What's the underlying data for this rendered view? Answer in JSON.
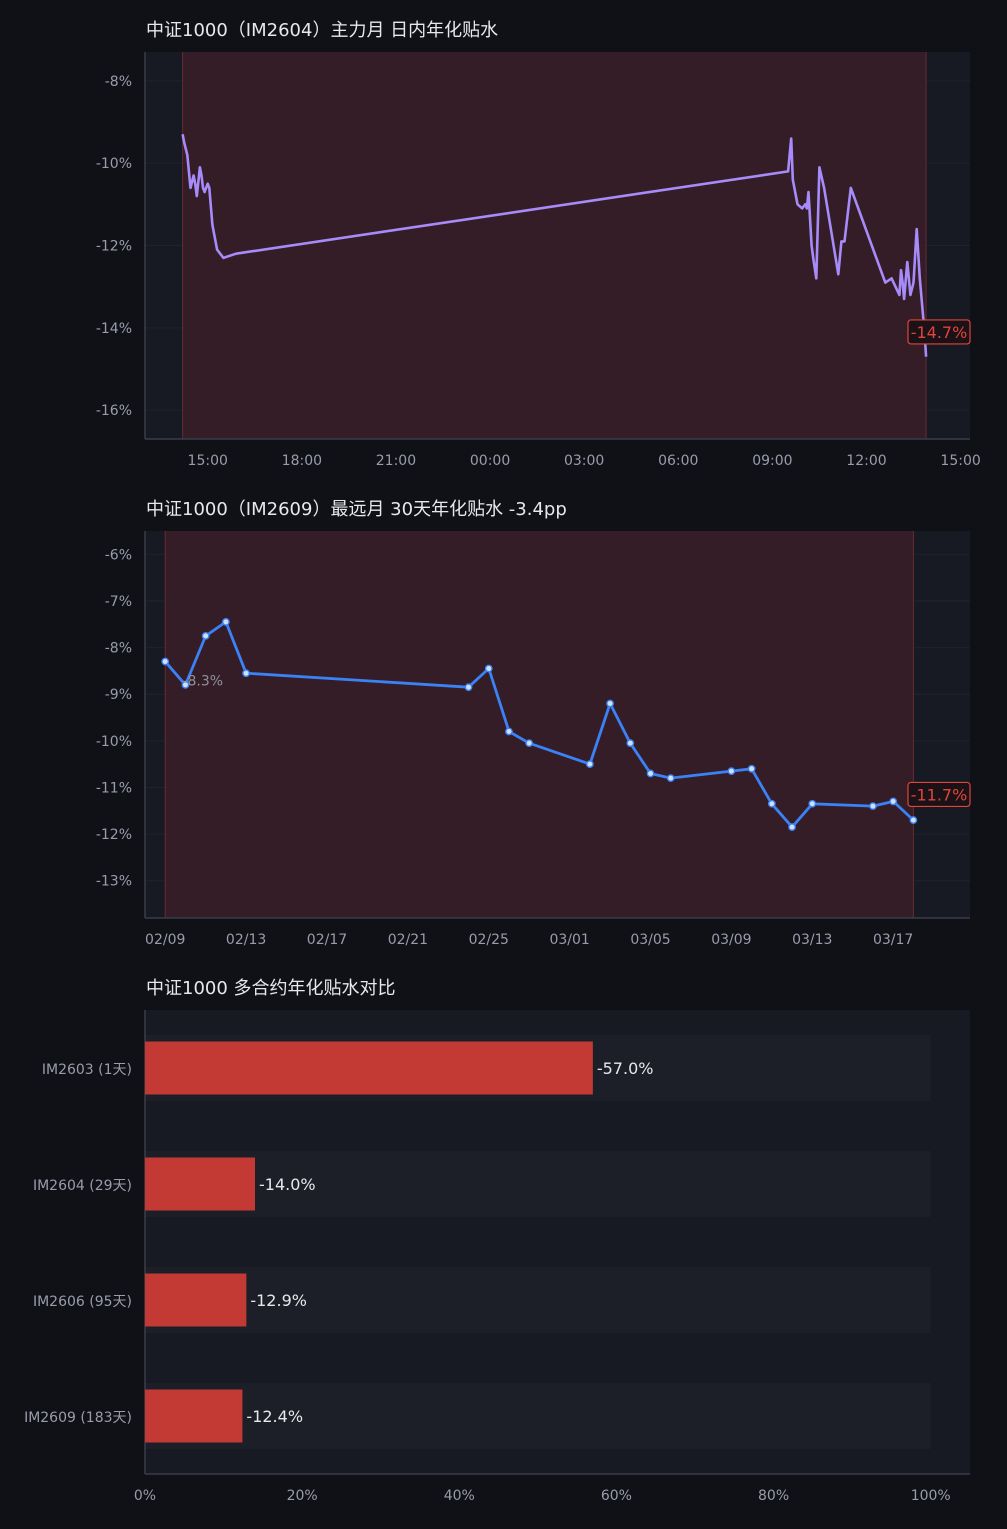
{
  "colors": {
    "background": "#0f1116",
    "plot_bg": "#171923",
    "shade": "#3a1f27",
    "line1": "#a78bfa",
    "line2": "#3b82f6",
    "bar": "#c23a33",
    "highlight": "#e0453a"
  },
  "chart_data": [
    {
      "type": "line",
      "title": "中证1000（IM2604）主力月 日内年化贴水",
      "x_ticks": [
        "15:00",
        "18:00",
        "21:00",
        "00:00",
        "03:00",
        "06:00",
        "09:00",
        "12:00",
        "15:00"
      ],
      "y_ticks": [
        "-8%",
        "-10%",
        "-12%",
        "-14%",
        "-16%"
      ],
      "ylim": [
        -16.7,
        -7.3
      ],
      "y_unit": "%",
      "xlim_hours": [
        13.0,
        39.3
      ],
      "shaded_span_hours": [
        14.2,
        37.9
      ],
      "series": [
        {
          "x_hours": [
            14.2,
            14.25,
            14.35,
            14.45,
            14.55,
            14.6,
            14.65,
            14.75,
            14.8,
            14.85,
            14.9,
            15.0,
            15.05,
            15.15,
            15.3,
            15.5,
            15.9,
            33.5,
            33.6,
            33.65,
            33.8,
            33.95,
            34.05,
            34.1,
            34.15,
            34.25,
            34.3,
            34.4,
            34.5,
            34.65,
            35.1,
            35.2,
            35.3,
            35.5,
            36.6,
            36.8,
            37.05,
            37.1,
            37.15,
            37.2,
            37.3,
            37.4,
            37.5,
            37.6,
            37.7,
            37.85,
            37.9
          ],
          "values": [
            -9.3,
            -9.5,
            -9.8,
            -10.6,
            -10.3,
            -10.5,
            -10.8,
            -10.1,
            -10.3,
            -10.6,
            -10.7,
            -10.5,
            -10.6,
            -11.5,
            -12.1,
            -12.3,
            -12.2,
            -10.2,
            -9.4,
            -10.4,
            -11.0,
            -11.1,
            -11.0,
            -11.1,
            -10.7,
            -12.0,
            -12.3,
            -12.8,
            -10.1,
            -10.6,
            -12.7,
            -11.9,
            -11.9,
            -10.6,
            -12.9,
            -12.8,
            -13.2,
            -12.6,
            -12.9,
            -13.3,
            -12.4,
            -13.2,
            -12.9,
            -11.6,
            -12.8,
            -14.1,
            -14.7
          ]
        }
      ],
      "annotation": "-14.7%"
    },
    {
      "type": "line",
      "title": "中证1000（IM2609）最远月 30天年化贴水   -3.4pp",
      "x_ticks": [
        "02/09",
        "02/13",
        "02/17",
        "02/21",
        "02/25",
        "03/01",
        "03/05",
        "03/09",
        "03/13",
        "03/17"
      ],
      "y_ticks": [
        "-6%",
        "-7%",
        "-8%",
        "-9%",
        "-10%",
        "-11%",
        "-12%",
        "-13%"
      ],
      "ylim": [
        -13.8,
        -5.5
      ],
      "y_unit": "%",
      "xlim_days": [
        -1.0,
        39.8
      ],
      "shaded_span_days": [
        0,
        37
      ],
      "series": [
        {
          "x_days": [
            0,
            1,
            2,
            3,
            4,
            15,
            16,
            17,
            18,
            21,
            22,
            23,
            24,
            25,
            28,
            29,
            30,
            31,
            32,
            35,
            36,
            37
          ],
          "values": [
            -8.3,
            -8.8,
            -7.75,
            -7.45,
            -8.55,
            -8.85,
            -8.45,
            -9.8,
            -10.05,
            -10.5,
            -9.2,
            -10.05,
            -10.7,
            -10.8,
            -10.65,
            -10.6,
            -11.35,
            -11.85,
            -11.35,
            -11.4,
            -11.3,
            -11.7
          ]
        }
      ],
      "start_label": "-8.3%",
      "annotation": "-11.7%"
    },
    {
      "type": "bar",
      "orientation": "horizontal",
      "title": "中证1000 多合约年化贴水对比",
      "categories": [
        "IM2603 (1天)",
        "IM2604 (29天)",
        "IM2606 (95天)",
        "IM2609 (183天)"
      ],
      "values": [
        57.0,
        14.0,
        12.9,
        12.4
      ],
      "value_labels": [
        "-57.0%",
        "-14.0%",
        "-12.9%",
        "-12.4%"
      ],
      "x_ticks": [
        "0%",
        "20%",
        "40%",
        "60%",
        "80%",
        "100%"
      ],
      "xlim": [
        0,
        105
      ]
    }
  ]
}
